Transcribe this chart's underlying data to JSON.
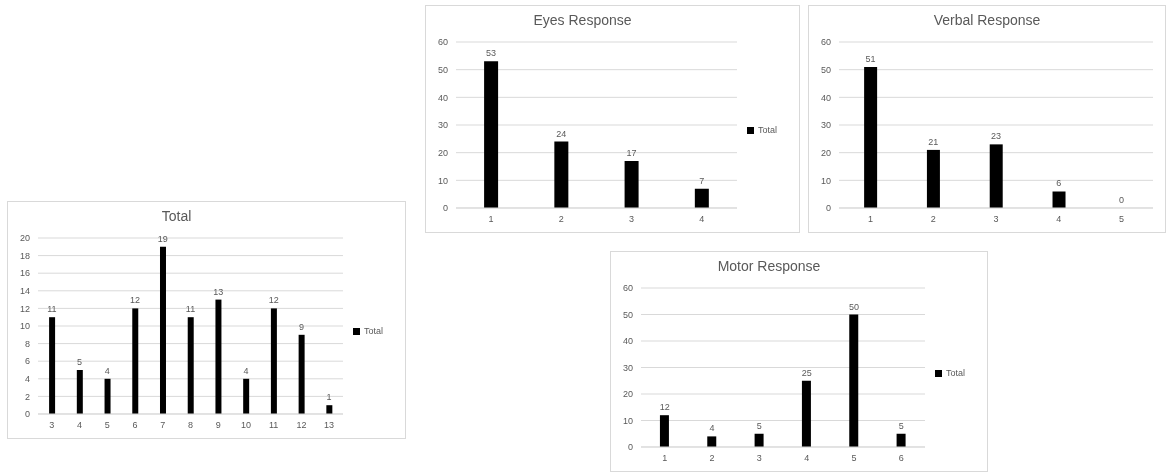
{
  "chart_data": [
    {
      "type": "bar",
      "title": "Total",
      "categories": [
        "3",
        "4",
        "5",
        "6",
        "7",
        "8",
        "9",
        "10",
        "11",
        "12",
        "13"
      ],
      "series": [
        {
          "name": "Total",
          "color": "#000000",
          "values": [
            11,
            5,
            4,
            12,
            19,
            11,
            13,
            4,
            12,
            9,
            1
          ]
        }
      ],
      "ylim": [
        0,
        20
      ],
      "yticks": [
        0,
        2,
        4,
        6,
        8,
        10,
        12,
        14,
        16,
        18,
        20
      ],
      "grid": "y",
      "data_labels": true,
      "legend": "right"
    },
    {
      "type": "bar",
      "title": "Eyes Response",
      "categories": [
        "1",
        "2",
        "3",
        "4"
      ],
      "series": [
        {
          "name": "Total",
          "color": "#000000",
          "values": [
            53,
            24,
            17,
            7
          ]
        }
      ],
      "ylim": [
        0,
        60
      ],
      "yticks": [
        0,
        10,
        20,
        30,
        40,
        50,
        60
      ],
      "grid": "y",
      "data_labels": true,
      "legend": "right"
    },
    {
      "type": "bar",
      "title": "Verbal Response",
      "categories": [
        "1",
        "2",
        "3",
        "4",
        "5"
      ],
      "series": [
        {
          "color": "#000000",
          "values": [
            51,
            21,
            23,
            6,
            0
          ]
        }
      ],
      "ylim": [
        0,
        60
      ],
      "yticks": [
        0,
        10,
        20,
        30,
        40,
        50,
        60
      ],
      "grid": "y",
      "data_labels": true
    },
    {
      "type": "bar",
      "title": "Motor Response",
      "categories": [
        "1",
        "2",
        "3",
        "4",
        "5",
        "6"
      ],
      "series": [
        {
          "name": "Total",
          "color": "#000000",
          "values": [
            12,
            4,
            5,
            25,
            50,
            5
          ]
        }
      ],
      "ylim": [
        0,
        60
      ],
      "yticks": [
        0,
        10,
        20,
        30,
        40,
        50,
        60
      ],
      "grid": "y",
      "data_labels": true,
      "legend": "right"
    }
  ]
}
